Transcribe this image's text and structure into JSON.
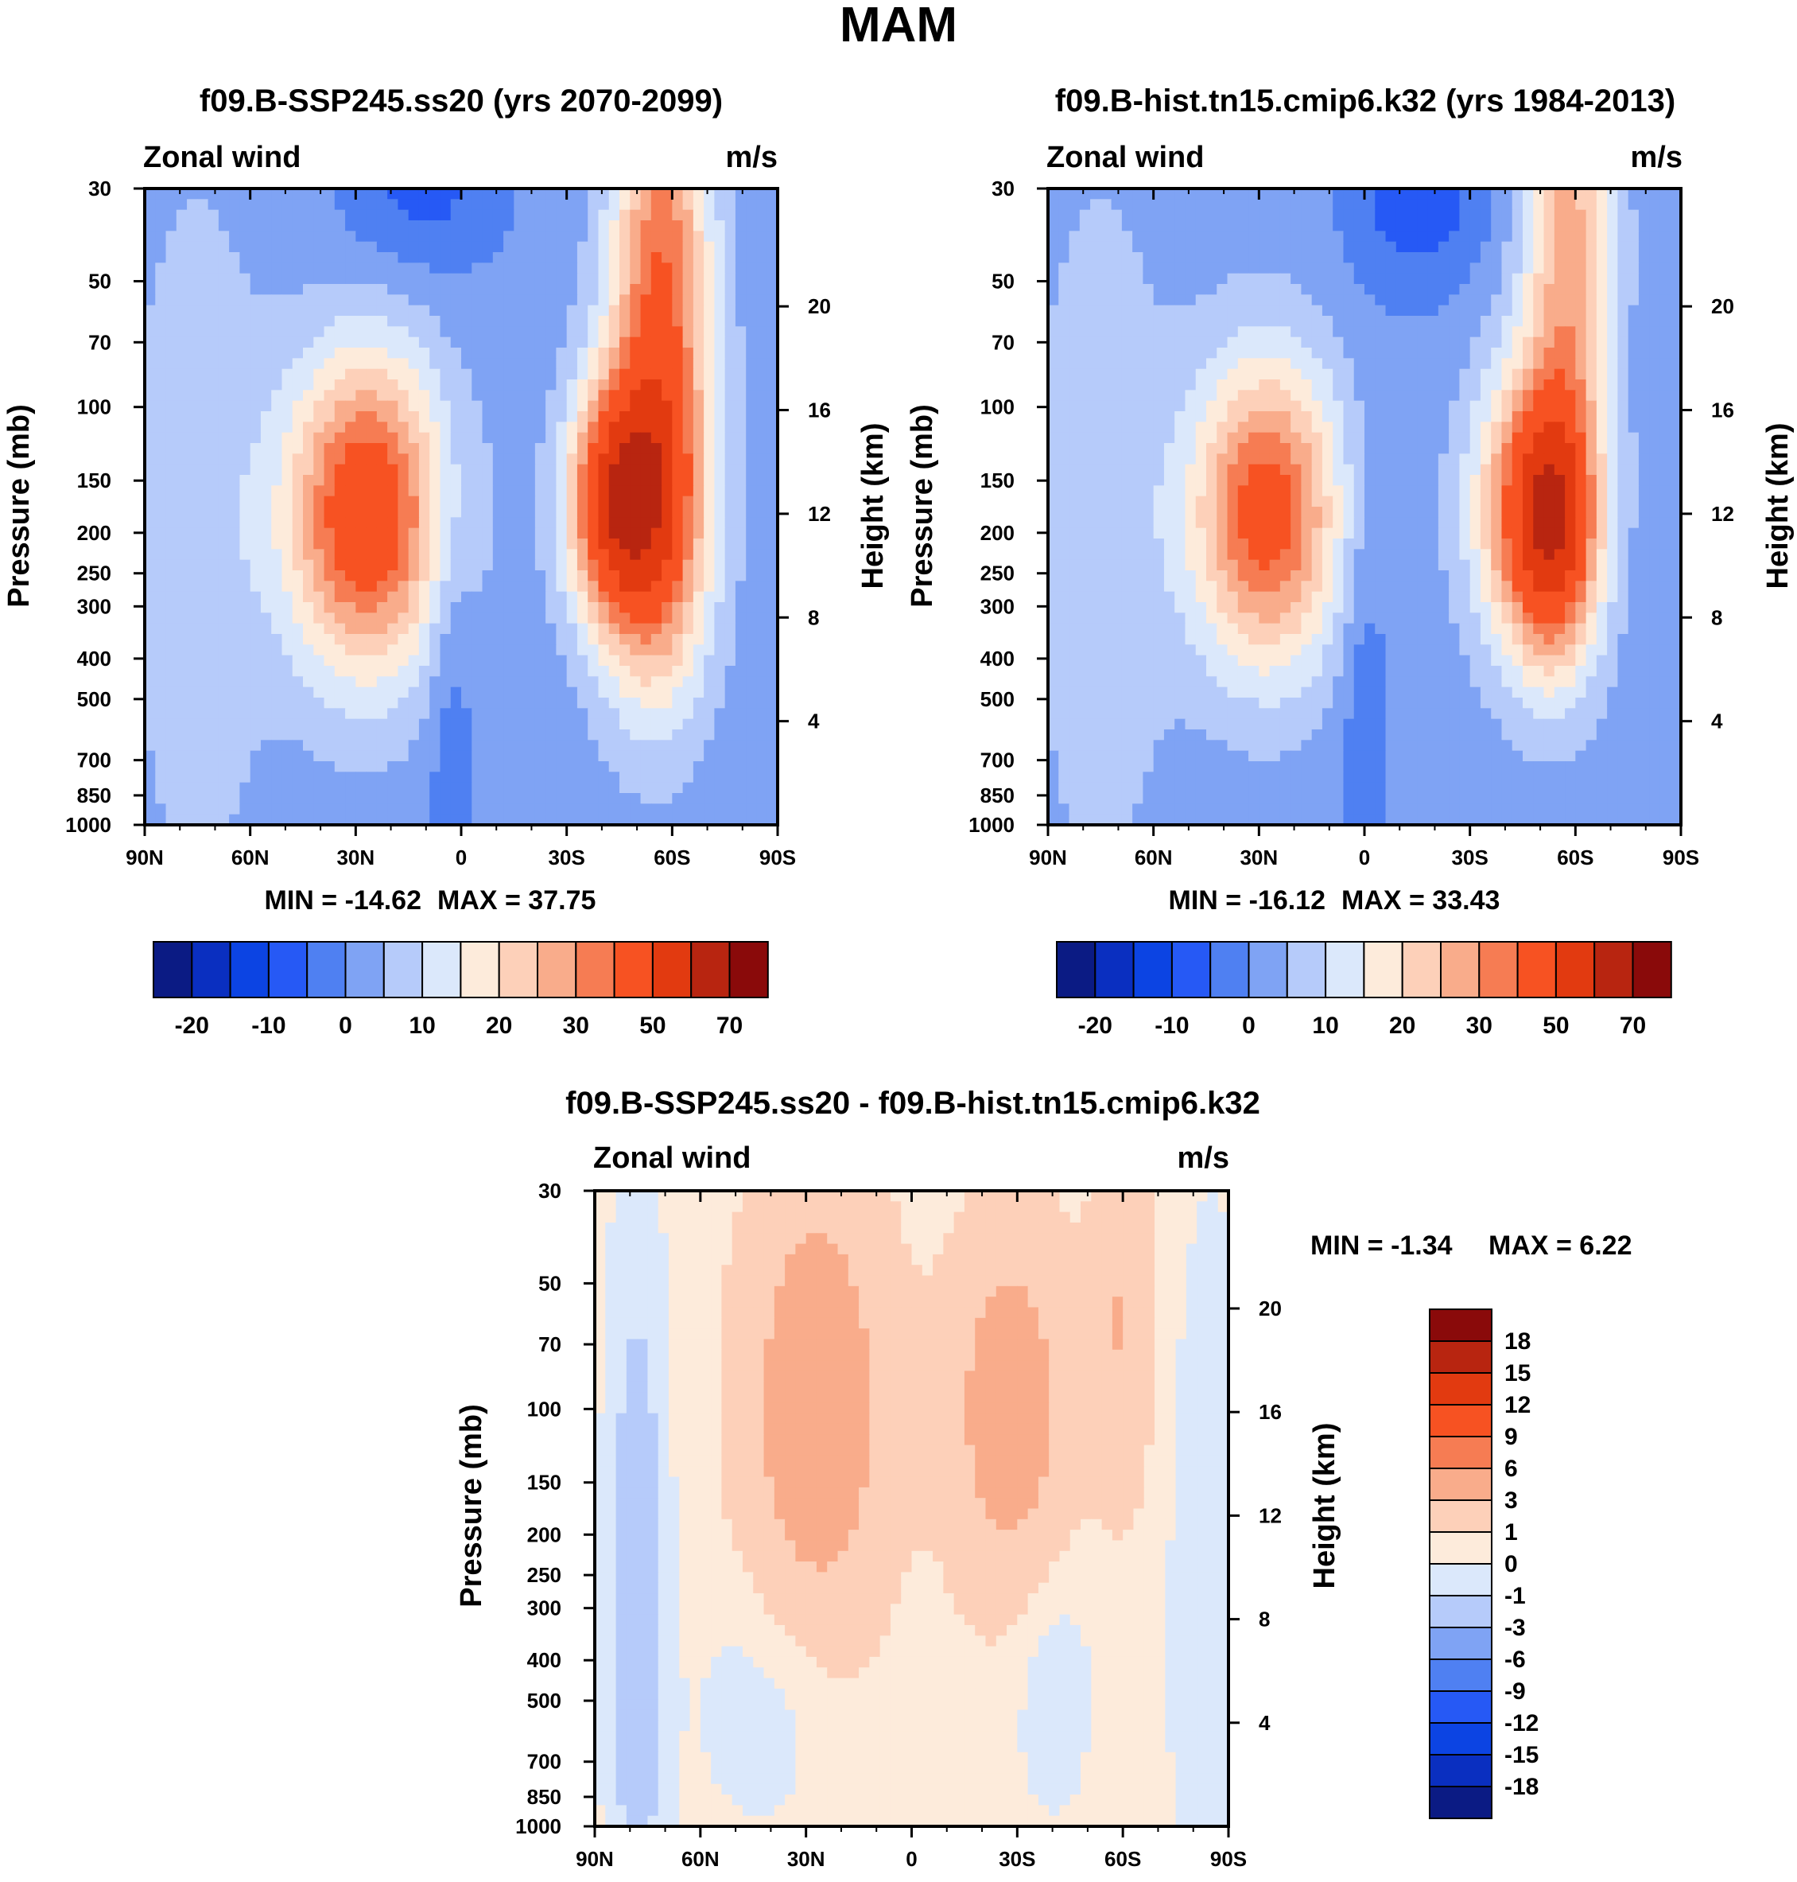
{
  "figure_title": "MAM",
  "colors": {
    "cmap16": [
      "#0b1b84",
      "#0a2fc0",
      "#0c44e3",
      "#2659f5",
      "#4f80f2",
      "#7fa3f4",
      "#b6cbfa",
      "#dbe8fb",
      "#fdebdb",
      "#fdd0b9",
      "#f9ac8b",
      "#f67c53",
      "#f75222",
      "#e23a10",
      "#b82510",
      "#8a0a0a"
    ],
    "diff_cmap16": [
      "#0b1b84",
      "#0a2fc0",
      "#0c44e3",
      "#2659f5",
      "#4f80f2",
      "#7fa3f4",
      "#b6cbfa",
      "#dbe8fb",
      "#fdebdb",
      "#fdd0b9",
      "#f9ac8b",
      "#f67c53",
      "#f75222",
      "#e23a10",
      "#b82510",
      "#8a0a0a"
    ]
  },
  "chart_data": [
    {
      "type": "contour",
      "id": "p1",
      "title": "f09.B-SSP245.ss20 (yrs 2070-2099)",
      "left_label": "Zonal wind",
      "right_label": "m/s",
      "xlabel": "",
      "ylabel": "Pressure (mb)",
      "y2label": "Height (km)",
      "x_ticks": [
        "90N",
        "60N",
        "30N",
        "0",
        "30S",
        "60S",
        "90S"
      ],
      "x_values": [
        90,
        60,
        30,
        0,
        -30,
        -60,
        -90
      ],
      "y_ticks": [
        "30",
        "50",
        "70",
        "100",
        "150",
        "200",
        "250",
        "300",
        "400",
        "500",
        "700",
        "850",
        "1000"
      ],
      "y_values": [
        30,
        50,
        70,
        100,
        150,
        200,
        250,
        300,
        400,
        500,
        700,
        850,
        1000
      ],
      "y2_ticks": [
        "20",
        "16",
        "12",
        "8",
        "4"
      ],
      "y2_values": [
        20,
        16,
        12,
        8,
        4
      ],
      "ylim": [
        1000,
        30
      ],
      "min_label": "MIN = -14.62",
      "max_label": "MAX =  37.75",
      "min": -14.62,
      "max": 37.75,
      "colorbar_labels": [
        "-20",
        "-10",
        "0",
        "10",
        "20",
        "30",
        "50",
        "70"
      ],
      "field": {
        "background": -3,
        "features": [
          {
            "lat": 27,
            "p": 180,
            "value": 38,
            "sx": 16,
            "sy": 0.62
          },
          {
            "lat": -42,
            "p": 170,
            "value": 30,
            "sx": 9,
            "sy": 0.45
          },
          {
            "lat": -55,
            "p": 185,
            "value": 34,
            "sx": 11,
            "sy": 0.7
          },
          {
            "lat": -57,
            "p": 40,
            "value": 26,
            "sx": 10,
            "sy": 0.9
          },
          {
            "lat": 12,
            "p": 30,
            "value": -12,
            "sx": 16,
            "sy": 0.35
          },
          {
            "lat": 3,
            "p": 450,
            "value": -9,
            "sx": 5,
            "sy": 0.9
          },
          {
            "lat": 75,
            "p": 200,
            "value": 4,
            "sx": 14,
            "sy": 1.4
          }
        ]
      }
    },
    {
      "type": "contour",
      "id": "p2",
      "title": "f09.B-hist.tn15.cmip6.k32 (yrs 1984-2013)",
      "left_label": "Zonal wind",
      "right_label": "m/s",
      "xlabel": "",
      "ylabel": "Pressure (mb)",
      "y2label": "Height (km)",
      "x_ticks": [
        "90N",
        "60N",
        "30N",
        "0",
        "30S",
        "60S",
        "90S"
      ],
      "x_values": [
        90,
        60,
        30,
        0,
        -30,
        -60,
        -90
      ],
      "y_ticks": [
        "30",
        "50",
        "70",
        "100",
        "150",
        "200",
        "250",
        "300",
        "400",
        "500",
        "700",
        "850",
        "1000"
      ],
      "y_values": [
        30,
        50,
        70,
        100,
        150,
        200,
        250,
        300,
        400,
        500,
        700,
        850,
        1000
      ],
      "y2_ticks": [
        "20",
        "16",
        "12",
        "8",
        "4"
      ],
      "y2_values": [
        20,
        16,
        12,
        8,
        4
      ],
      "ylim": [
        1000,
        30
      ],
      "min_label": "MIN = -16.12",
      "max_label": "MAX =  33.43",
      "min": -16.12,
      "max": 33.43,
      "colorbar_labels": [
        "-20",
        "-10",
        "0",
        "10",
        "20",
        "30",
        "50",
        "70"
      ],
      "field": {
        "background": -3,
        "features": [
          {
            "lat": 28,
            "p": 180,
            "value": 34,
            "sx": 15,
            "sy": 0.6
          },
          {
            "lat": -45,
            "p": 175,
            "value": 24,
            "sx": 11,
            "sy": 0.55
          },
          {
            "lat": -55,
            "p": 200,
            "value": 30,
            "sx": 9,
            "sy": 0.55
          },
          {
            "lat": -58,
            "p": 40,
            "value": 22,
            "sx": 9,
            "sy": 0.9
          },
          {
            "lat": -15,
            "p": 30,
            "value": -14,
            "sx": 14,
            "sy": 0.4
          },
          {
            "lat": 0,
            "p": 450,
            "value": -9,
            "sx": 5,
            "sy": 0.9
          },
          {
            "lat": 75,
            "p": 200,
            "value": 4,
            "sx": 14,
            "sy": 1.4
          }
        ]
      }
    },
    {
      "type": "contour",
      "id": "p3",
      "title": "f09.B-SSP245.ss20 - f09.B-hist.tn15.cmip6.k32",
      "left_label": "Zonal wind",
      "right_label": "m/s",
      "xlabel": "",
      "ylabel": "Pressure (mb)",
      "y2label": "Height (km)",
      "x_ticks": [
        "90N",
        "60N",
        "30N",
        "0",
        "30S",
        "60S",
        "90S"
      ],
      "x_values": [
        90,
        60,
        30,
        0,
        -30,
        -60,
        -90
      ],
      "y_ticks": [
        "30",
        "50",
        "70",
        "100",
        "150",
        "200",
        "250",
        "300",
        "400",
        "500",
        "700",
        "850",
        "1000"
      ],
      "y_values": [
        30,
        50,
        70,
        100,
        150,
        200,
        250,
        300,
        400,
        500,
        700,
        850,
        1000
      ],
      "y2_ticks": [
        "20",
        "16",
        "12",
        "8",
        "4"
      ],
      "y2_values": [
        20,
        16,
        12,
        8,
        4
      ],
      "ylim": [
        1000,
        30
      ],
      "min_label": "MIN =  -1.34",
      "max_label": "MAX =    6.22",
      "min": -1.34,
      "max": 6.22,
      "colorbar_labels": [
        "18",
        "15",
        "12",
        "9",
        "6",
        "3",
        "1",
        "0",
        "-1",
        "-3",
        "-6",
        "-9",
        "-12",
        "-15",
        "-18"
      ],
      "field": {
        "background": 0.4,
        "features": [
          {
            "lat": 27,
            "p": 100,
            "value": 5,
            "sx": 14,
            "sy": 0.9
          },
          {
            "lat": -28,
            "p": 100,
            "value": 4.6,
            "sx": 12,
            "sy": 0.7
          },
          {
            "lat": -60,
            "p": 60,
            "value": 3,
            "sx": 6,
            "sy": 0.7
          },
          {
            "lat": 78,
            "p": 300,
            "value": -2,
            "sx": 6,
            "sy": 1.5
          },
          {
            "lat": -40,
            "p": 450,
            "value": -0.8,
            "sx": 8,
            "sy": 0.5
          },
          {
            "lat": 40,
            "p": 500,
            "value": -0.8,
            "sx": 14,
            "sy": 0.5
          },
          {
            "lat": -85,
            "p": 300,
            "value": -0.9,
            "sx": 8,
            "sy": 1.5
          }
        ]
      }
    }
  ]
}
